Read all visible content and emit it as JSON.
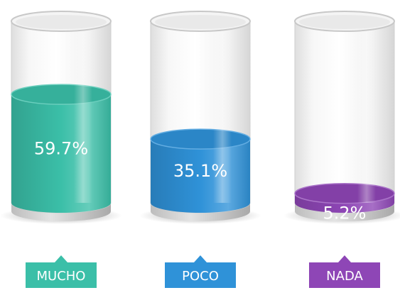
{
  "chart_data": {
    "type": "bar",
    "style": "3d-cylinder-fill",
    "categories": [
      "MUCHO",
      "POCO",
      "NADA"
    ],
    "values": [
      59.7,
      35.1,
      5.2
    ],
    "value_labels": [
      "59.7%",
      "35.1%",
      "5.2%"
    ],
    "unit": "%",
    "ylim": [
      0,
      100
    ],
    "colors": [
      "#3bbfa8",
      "#2f92d8",
      "#8e46b6"
    ],
    "grid": false
  }
}
